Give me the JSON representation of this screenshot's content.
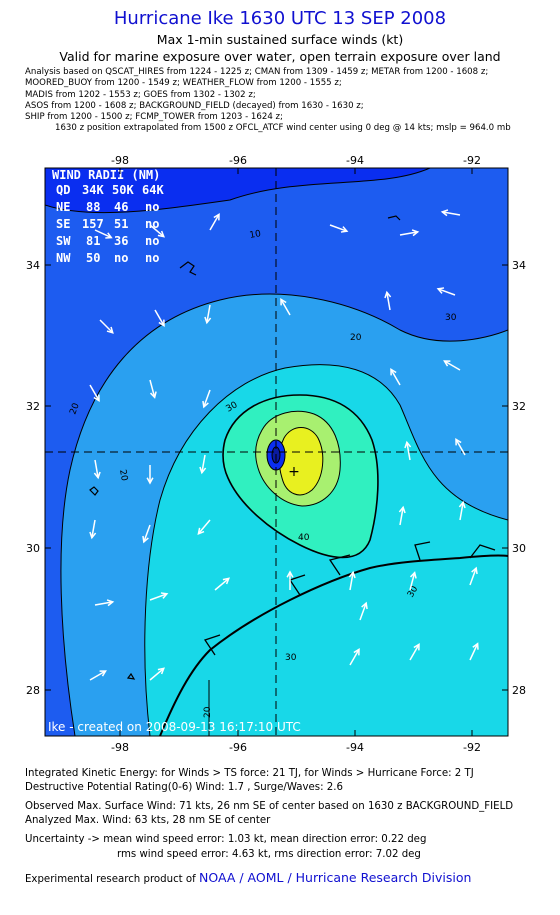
{
  "title": "Hurricane Ike 1630 UTC 13 SEP 2008",
  "subtitle1": "Max 1-min sustained surface winds (kt)",
  "subtitle2": "Valid for marine exposure over water, open terrain exposure over land",
  "analysis_lines": [
    "Analysis based on  QSCAT_HIRES from 1224 - 1225 z;  CMAN from 1309 - 1459 z;  METAR from 1200 - 1608 z;",
    "MOORED_BUOY from 1200 - 1549 z;  WEATHER_FLOW from 1200 - 1555 z;",
    "MADIS from 1202 - 1553 z;  GOES from 1302 - 1302 z;",
    "ASOS from 1200 - 1608 z;  BACKGROUND_FIELD (decayed) from 1630 - 1630 z;",
    "SHIP from 1200 - 1500 z;  FCMP_TOWER from 1203 - 1624 z;",
    "1630 z position extrapolated from 1500 z OFCL_ATCF wind center using 0 deg @ 14 kts; mslp = 964.0 mb"
  ],
  "map": {
    "lon_ticks": [
      "-98",
      "-96",
      "-94",
      "-92"
    ],
    "lat_ticks": [
      "34",
      "32",
      "30",
      "28"
    ],
    "contour_labels": [
      "10",
      "20",
      "30",
      "40",
      "20",
      "30",
      "30",
      "20",
      "20",
      "30"
    ],
    "stamp": "Ike - created on 2008-09-13 16:17:10 UTC",
    "wind_radii": {
      "title": "WIND RADII (NM)",
      "header": [
        "QD",
        "34K",
        "50K",
        "64K"
      ],
      "rows": [
        [
          "NE",
          "88",
          "46",
          "no"
        ],
        [
          "SE",
          "157",
          "51",
          "no"
        ],
        [
          "SW",
          "81",
          "36",
          "no"
        ],
        [
          "NW",
          "50",
          "no",
          "no"
        ]
      ]
    }
  },
  "footer": {
    "ike_line": "Integrated Kinetic Energy:  for Winds > TS force: 21 TJ,  for Winds > Hurricane Force: 2 TJ",
    "dpr_line": "Destructive Potential Rating(0-6)   Wind: 1.7 , Surge/Waves: 2.6",
    "obs_line": "Observed Max. Surface Wind: 71 kts, 26 nm SE of center based on 1630 z BACKGROUND_FIELD",
    "analyzed_line": "Analyzed Max. Wind: 63 kts, 28 nm SE of center",
    "unc_line1": "Uncertainty -> mean wind speed error: 1.03 kt,   mean direction error: 0.22 deg",
    "unc_line2": "rms wind speed error: 4.63 kt,   rms direction error: 7.02 deg",
    "credit_prefix": "Experimental research product of ",
    "credit_link": "NOAA / AOML / Hurricane Research Division"
  },
  "colors": {
    "title": "#1010d0",
    "outer_fill": "#0a2ef0",
    "level_10": "#1d5cf0",
    "level_20": "#2aa0f0",
    "level_30": "#18d8e8",
    "level_40": "#30f0c0",
    "level_50": "#a8f070",
    "level_60": "#e8f020"
  }
}
